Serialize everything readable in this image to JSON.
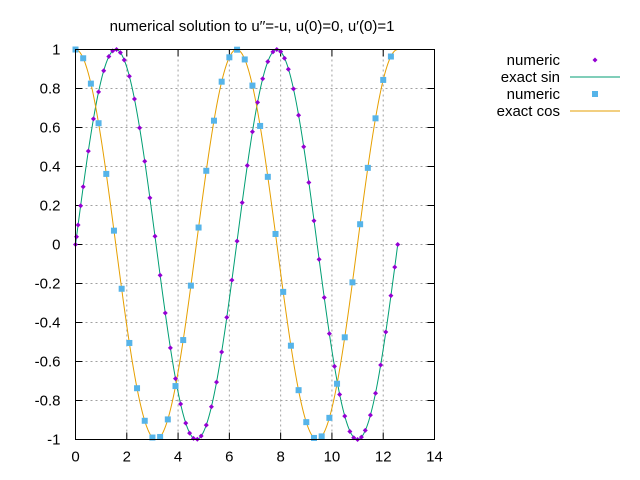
{
  "chart_data": {
    "type": "line",
    "title": "numerical solution to u′′=-u, u(0)=0, u′(0)=1",
    "xlabel": "",
    "ylabel": "",
    "xlim": [
      0,
      14
    ],
    "ylim": [
      -1,
      1
    ],
    "x_ticks": [
      0,
      2,
      4,
      6,
      8,
      10,
      12,
      14
    ],
    "y_ticks": [
      -1,
      -0.8,
      -0.6,
      -0.4,
      -0.2,
      0,
      0.2,
      0.4,
      0.6,
      0.8,
      1
    ],
    "grid": true,
    "legend": "outside-right",
    "series": [
      {
        "name": "numeric",
        "kind": "points",
        "marker": "diamond",
        "color": "#9400d3",
        "x": [
          0,
          0.04,
          0.1,
          0.2,
          0.3,
          0.5,
          0.7,
          0.9,
          1.1,
          1.3,
          1.45,
          1.6,
          1.75,
          1.9,
          2.1,
          2.3,
          2.5,
          2.7,
          2.9,
          3.1,
          3.3,
          3.5,
          3.7,
          3.9,
          4.1,
          4.3,
          4.45,
          4.6,
          4.75,
          4.9,
          5.1,
          5.3,
          5.5,
          5.7,
          5.9,
          6.1,
          6.3,
          6.5,
          6.7,
          6.9,
          7.1,
          7.3,
          7.5,
          7.7,
          7.85,
          8.0,
          8.15,
          8.3,
          8.5,
          8.7,
          8.9,
          9.1,
          9.3,
          9.5,
          9.7,
          9.9,
          10.1,
          10.3,
          10.5,
          10.7,
          10.85,
          11.0,
          11.15,
          11.3,
          11.5,
          11.7,
          11.9,
          12.1,
          12.3,
          12.45,
          12.566
        ],
        "y": [
          0,
          0.04,
          0.1,
          0.199,
          0.296,
          0.479,
          0.644,
          0.783,
          0.891,
          0.964,
          0.993,
          1.0,
          0.984,
          0.946,
          0.863,
          0.746,
          0.598,
          0.427,
          0.239,
          0.042,
          -0.158,
          -0.351,
          -0.53,
          -0.688,
          -0.818,
          -0.916,
          -0.967,
          -0.994,
          -0.999,
          -0.982,
          -0.926,
          -0.832,
          -0.706,
          -0.551,
          -0.374,
          -0.183,
          0.017,
          0.215,
          0.405,
          0.578,
          0.729,
          0.85,
          0.938,
          0.988,
          1.0,
          0.989,
          0.955,
          0.899,
          0.798,
          0.663,
          0.501,
          0.318,
          0.122,
          -0.076,
          -0.272,
          -0.457,
          -0.625,
          -0.769,
          -0.88,
          -0.959,
          -0.991,
          -1.0,
          -0.988,
          -0.953,
          -0.875,
          -0.763,
          -0.618,
          -0.449,
          -0.262,
          -0.116,
          0
        ]
      },
      {
        "name": "exact sin",
        "kind": "line",
        "color": "#009e73",
        "function": "sin",
        "domain": [
          0,
          12.566
        ]
      },
      {
        "name": "numeric",
        "kind": "points",
        "marker": "square",
        "color": "#56b4e9",
        "x": [
          0,
          0.3,
          0.6,
          0.9,
          1.2,
          1.5,
          1.8,
          2.1,
          2.4,
          2.7,
          3.0,
          3.3,
          3.6,
          3.9,
          4.2,
          4.5,
          4.8,
          5.1,
          5.4,
          5.7,
          6.0,
          6.3,
          6.6,
          6.9,
          7.2,
          7.5,
          7.8,
          8.1,
          8.4,
          8.7,
          9.0,
          9.3,
          9.6,
          9.9,
          10.2,
          10.5,
          10.8,
          11.1,
          11.4,
          11.7,
          12.0,
          12.3
        ],
        "y": [
          1.0,
          0.955,
          0.825,
          0.622,
          0.362,
          0.071,
          -0.227,
          -0.505,
          -0.737,
          -0.904,
          -0.99,
          -0.987,
          -0.897,
          -0.726,
          -0.49,
          -0.211,
          0.087,
          0.378,
          0.635,
          0.835,
          0.96,
          0.999,
          0.949,
          0.815,
          0.608,
          0.347,
          0.054,
          -0.243,
          -0.519,
          -0.747,
          -0.911,
          -0.992,
          -0.984,
          -0.889,
          -0.714,
          -0.476,
          -0.194,
          0.104,
          0.393,
          0.647,
          0.844,
          0.964
        ]
      },
      {
        "name": "exact cos",
        "kind": "line",
        "color": "#e69f00",
        "function": "cos",
        "domain": [
          0,
          12.566
        ]
      }
    ]
  }
}
